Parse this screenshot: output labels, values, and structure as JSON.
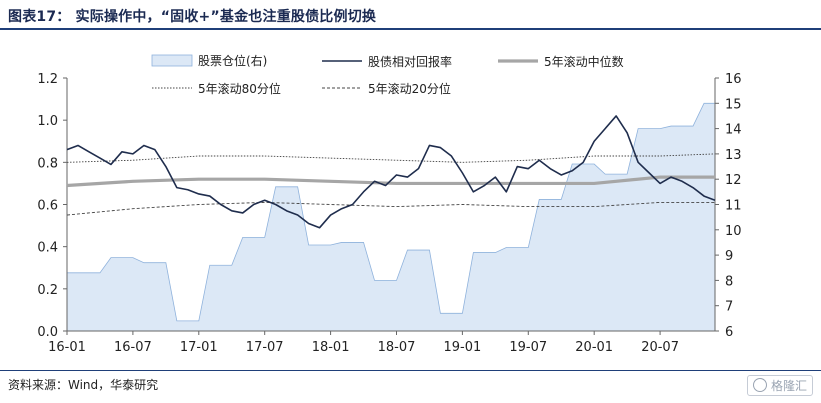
{
  "header": {
    "title": "图表17：  实际操作中，“固收+”基金也注重股债比例切换"
  },
  "footer": {
    "source": "资料来源：Wind，华泰研究",
    "watermark": "格隆汇",
    "watermark_icon": "ring-logo-icon"
  },
  "colors": {
    "area_fill": "#dce8f6",
    "area_stroke": "#8fb2dc",
    "ratio_line": "#1f2d4d",
    "median_line": "#a6a6a6",
    "pct_lines": "#444444"
  },
  "chart_data": {
    "type": "line",
    "x_ticks": [
      "16-01",
      "16-07",
      "17-01",
      "17-07",
      "18-01",
      "18-07",
      "19-01",
      "19-07",
      "20-01",
      "20-07"
    ],
    "x_range": [
      "2016-01",
      "2020-12"
    ],
    "y_left": {
      "ticks": [
        "0.0",
        "0.2",
        "0.4",
        "0.6",
        "0.8",
        "1.0",
        "1.2"
      ],
      "range": [
        0,
        1.2
      ]
    },
    "y_right": {
      "ticks": [
        "6",
        "7",
        "8",
        "9",
        "10",
        "11",
        "12",
        "13",
        "14",
        "15",
        "16"
      ],
      "range": [
        6,
        16
      ]
    },
    "legend": [
      "股票仓位(右)",
      "股债相对回报率",
      "5年滚动中位数",
      "5年滚动80分位",
      "5年滚动20分位"
    ],
    "series": [
      {
        "name": "股票仓位(右)",
        "type": "area",
        "axis": "right",
        "x": [
          "2016-01",
          "2016-04",
          "2016-05",
          "2016-07",
          "2016-08",
          "2016-10",
          "2016-11",
          "2017-01",
          "2017-02",
          "2017-04",
          "2017-05",
          "2017-07",
          "2017-08",
          "2017-10",
          "2017-11",
          "2018-01",
          "2018-02",
          "2018-04",
          "2018-05",
          "2018-07",
          "2018-08",
          "2018-10",
          "2018-11",
          "2019-01",
          "2019-02",
          "2019-04",
          "2019-05",
          "2019-07",
          "2019-08",
          "2019-10",
          "2019-11",
          "2020-01",
          "2020-02",
          "2020-04",
          "2020-05",
          "2020-07",
          "2020-08",
          "2020-10",
          "2020-11",
          "2020-12"
        ],
        "values": [
          8.3,
          8.3,
          8.9,
          8.9,
          8.7,
          8.7,
          6.4,
          6.4,
          8.6,
          8.6,
          9.7,
          9.7,
          11.7,
          11.7,
          9.4,
          9.4,
          9.5,
          9.5,
          8.0,
          8.0,
          9.2,
          9.2,
          6.7,
          6.7,
          9.1,
          9.1,
          9.3,
          9.3,
          11.2,
          11.2,
          12.6,
          12.6,
          12.2,
          12.2,
          14.0,
          14.0,
          14.1,
          14.1,
          15.0,
          15.0
        ]
      },
      {
        "name": "股债相对回报率",
        "type": "line",
        "axis": "left",
        "x": [
          "2016-01",
          "2016-02",
          "2016-03",
          "2016-04",
          "2016-05",
          "2016-06",
          "2016-07",
          "2016-08",
          "2016-09",
          "2016-10",
          "2016-11",
          "2016-12",
          "2017-01",
          "2017-02",
          "2017-03",
          "2017-04",
          "2017-05",
          "2017-06",
          "2017-07",
          "2017-08",
          "2017-09",
          "2017-10",
          "2017-11",
          "2017-12",
          "2018-01",
          "2018-02",
          "2018-03",
          "2018-04",
          "2018-05",
          "2018-06",
          "2018-07",
          "2018-08",
          "2018-09",
          "2018-10",
          "2018-11",
          "2018-12",
          "2019-01",
          "2019-02",
          "2019-03",
          "2019-04",
          "2019-05",
          "2019-06",
          "2019-07",
          "2019-08",
          "2019-09",
          "2019-10",
          "2019-11",
          "2019-12",
          "2020-01",
          "2020-02",
          "2020-03",
          "2020-04",
          "2020-05",
          "2020-06",
          "2020-07",
          "2020-08",
          "2020-09",
          "2020-10",
          "2020-11",
          "2020-12"
        ],
        "values": [
          0.86,
          0.88,
          0.85,
          0.82,
          0.79,
          0.85,
          0.84,
          0.88,
          0.86,
          0.78,
          0.68,
          0.67,
          0.65,
          0.64,
          0.6,
          0.57,
          0.56,
          0.6,
          0.62,
          0.6,
          0.57,
          0.55,
          0.51,
          0.49,
          0.55,
          0.58,
          0.6,
          0.66,
          0.71,
          0.69,
          0.74,
          0.73,
          0.77,
          0.88,
          0.87,
          0.83,
          0.75,
          0.66,
          0.69,
          0.73,
          0.66,
          0.78,
          0.77,
          0.81,
          0.77,
          0.74,
          0.76,
          0.8,
          0.9,
          0.96,
          1.02,
          0.94,
          0.8,
          0.75,
          0.7,
          0.73,
          0.71,
          0.68,
          0.64,
          0.62
        ]
      },
      {
        "name": "5年滚动中位数",
        "type": "line",
        "axis": "left",
        "x": [
          "2016-01",
          "2016-07",
          "2017-01",
          "2017-07",
          "2018-01",
          "2018-07",
          "2019-01",
          "2019-07",
          "2020-01",
          "2020-07",
          "2020-12"
        ],
        "values": [
          0.69,
          0.71,
          0.72,
          0.72,
          0.71,
          0.7,
          0.7,
          0.7,
          0.7,
          0.73,
          0.73
        ]
      },
      {
        "name": "5年滚动80分位",
        "type": "line",
        "axis": "left",
        "x": [
          "2016-01",
          "2016-07",
          "2017-01",
          "2017-07",
          "2018-01",
          "2018-07",
          "2019-01",
          "2019-07",
          "2020-01",
          "2020-07",
          "2020-12"
        ],
        "values": [
          0.8,
          0.81,
          0.83,
          0.83,
          0.82,
          0.81,
          0.8,
          0.81,
          0.83,
          0.83,
          0.84
        ]
      },
      {
        "name": "5年滚动20分位",
        "type": "line",
        "axis": "left",
        "x": [
          "2016-01",
          "2016-07",
          "2017-01",
          "2017-07",
          "2018-01",
          "2018-07",
          "2019-01",
          "2019-07",
          "2020-01",
          "2020-07",
          "2020-12"
        ],
        "values": [
          0.55,
          0.58,
          0.6,
          0.61,
          0.6,
          0.59,
          0.6,
          0.59,
          0.59,
          0.61,
          0.61
        ]
      }
    ]
  }
}
